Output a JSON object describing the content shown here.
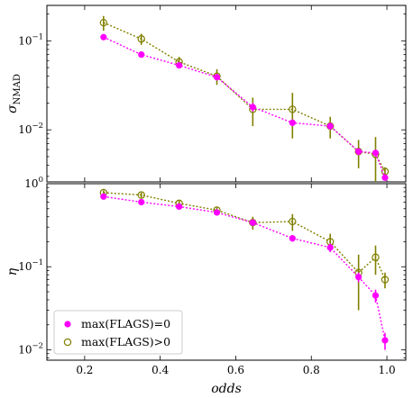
{
  "chart_data": [
    {
      "type": "line",
      "panel": "top",
      "ylabel_main": "σ",
      "ylabel_sub": "NMAD",
      "yscale": "log",
      "ylim": [
        0.0026,
        0.25
      ],
      "xlim": [
        0.1,
        1.05
      ],
      "ytick_labels": [
        {
          "value": 0.1,
          "base": "10",
          "exp": "−1"
        },
        {
          "value": 0.01,
          "base": "10",
          "exp": "−2"
        }
      ],
      "series": [
        {
          "name": "max(FLAGS)=0",
          "color": "#ff00ff",
          "marker": "filled",
          "x": [
            0.25,
            0.35,
            0.45,
            0.55,
            0.645,
            0.75,
            0.85,
            0.925,
            0.97,
            0.995
          ],
          "y": [
            0.11,
            0.07,
            0.053,
            0.039,
            0.018,
            0.012,
            0.011,
            0.0057,
            0.0055,
            0.0029
          ],
          "err": [
            0.008,
            0.005,
            0.004,
            0.003,
            0.002,
            0.001,
            0.001,
            0.0005,
            0.0005,
            0.0002
          ]
        },
        {
          "name": "max(FLAGS)>0",
          "color": "#808000",
          "marker": "open",
          "x": [
            0.25,
            0.35,
            0.45,
            0.55,
            0.645,
            0.75,
            0.85,
            0.925,
            0.97,
            0.995
          ],
          "y": [
            0.16,
            0.105,
            0.058,
            0.04,
            0.017,
            0.017,
            0.011,
            0.0057,
            0.0053,
            0.0034
          ],
          "err": [
            0.03,
            0.015,
            0.008,
            0.008,
            0.006,
            0.009,
            0.003,
            0.002,
            0.003,
            0.0004
          ]
        }
      ]
    },
    {
      "type": "line",
      "panel": "bottom",
      "ylabel_main": "η",
      "xlabel": "odds",
      "yscale": "log",
      "ylim": [
        0.0075,
        1.0
      ],
      "xlim": [
        0.1,
        1.05
      ],
      "ytick_labels": [
        {
          "value": 1.0,
          "base": "10",
          "exp": "0"
        },
        {
          "value": 0.1,
          "base": "10",
          "exp": "−1"
        },
        {
          "value": 0.01,
          "base": "10",
          "exp": "−2"
        }
      ],
      "xticks": [
        {
          "value": 0.2,
          "label": "0.2"
        },
        {
          "value": 0.4,
          "label": "0.4"
        },
        {
          "value": 0.6,
          "label": "0.6"
        },
        {
          "value": 0.8,
          "label": "0.8"
        },
        {
          "value": 1.0,
          "label": "1.0"
        }
      ],
      "series": [
        {
          "name": "max(FLAGS)=0",
          "color": "#ff00ff",
          "marker": "filled",
          "x": [
            0.25,
            0.35,
            0.45,
            0.55,
            0.645,
            0.75,
            0.85,
            0.925,
            0.97,
            0.995
          ],
          "y": [
            0.7,
            0.6,
            0.53,
            0.45,
            0.34,
            0.22,
            0.17,
            0.075,
            0.045,
            0.013
          ],
          "err": [
            0.03,
            0.03,
            0.03,
            0.03,
            0.03,
            0.02,
            0.02,
            0.01,
            0.008,
            0.003
          ]
        },
        {
          "name": "max(FLAGS)>0",
          "color": "#808000",
          "marker": "open",
          "x": [
            0.25,
            0.35,
            0.45,
            0.55,
            0.645,
            0.75,
            0.85,
            0.925,
            0.97,
            0.995
          ],
          "y": [
            0.78,
            0.73,
            0.58,
            0.48,
            0.34,
            0.35,
            0.2,
            0.085,
            0.13,
            0.07
          ],
          "err": [
            0.05,
            0.05,
            0.05,
            0.05,
            0.06,
            0.08,
            0.05,
            0.055,
            0.05,
            0.015
          ]
        }
      ]
    }
  ],
  "legend": {
    "placement": "lower-left",
    "entries": [
      {
        "label": "max(FLAGS)=0",
        "color": "#ff00ff",
        "marker": "filled"
      },
      {
        "label": "max(FLAGS)>0",
        "color": "#808000",
        "marker": "open"
      }
    ]
  }
}
